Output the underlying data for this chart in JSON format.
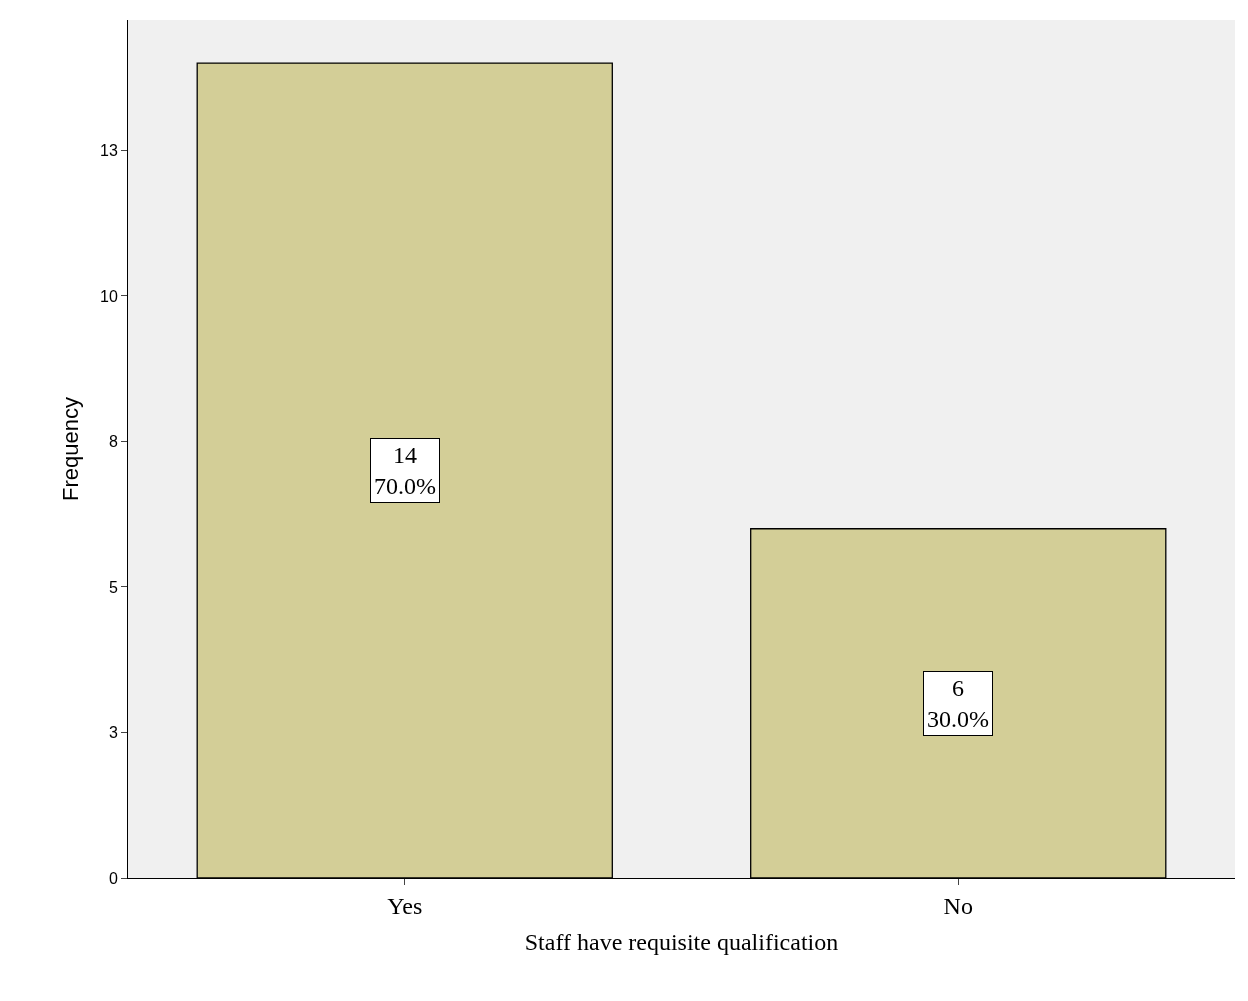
{
  "chart_data": {
    "type": "bar",
    "xlabel": "Staff have requisite qualification",
    "ylabel": "Frequency",
    "categories": [
      "Yes",
      "No"
    ],
    "values": [
      14,
      6
    ],
    "color": "#d3ce97",
    "value_labels": [
      "14\n70.0%",
      "6\n30.0%"
    ],
    "ylim": [
      0,
      14.74
    ],
    "yticks": [
      0,
      {
        "value": 2.5,
        "label": "3"
      },
      5,
      {
        "value": 7.5,
        "label": "8"
      },
      10,
      {
        "value": 12.5,
        "label": "13"
      }
    ],
    "grid": false,
    "legend": false
  }
}
